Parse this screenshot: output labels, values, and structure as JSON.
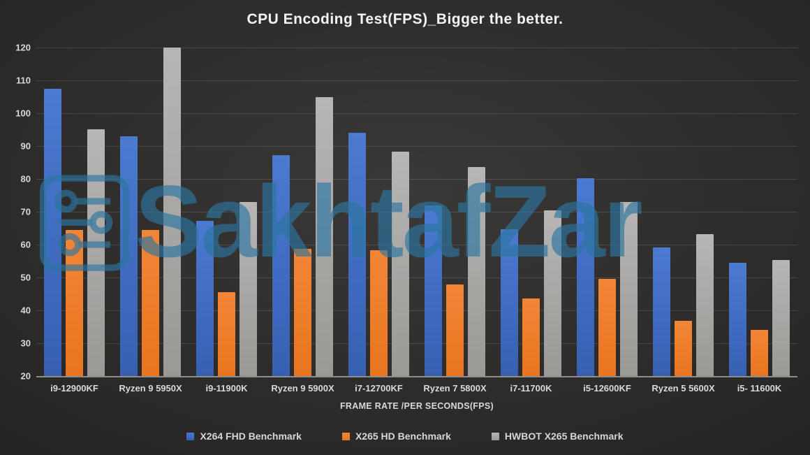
{
  "page": {
    "background": "#2e2d2b"
  },
  "chart_data": {
    "type": "bar",
    "title": "CPU Encoding Test(FPS)_Bigger the better.",
    "xlabel": "FRAME RATE /PER SECONDS(FPS)",
    "ylabel": "",
    "ylim": [
      20,
      120
    ],
    "yticks": [
      120,
      110,
      100,
      90,
      80,
      70,
      60,
      50,
      40,
      30,
      20
    ],
    "grid": true,
    "legend_position": "bottom",
    "categories": [
      "i9-12900KF",
      "Ryzen 9 5950X",
      "i9-11900K",
      "Ryzen 9 5900X",
      "i7-12700KF",
      "Ryzen 7 5800X",
      "i7-11700K",
      "i5-12600KF",
      "Ryzen 5 5600X",
      "i5- 11600K"
    ],
    "series": [
      {
        "name": "X264 FHD Benchmark",
        "color": "#3760b2",
        "color_light": "#4b7ad0",
        "values": [
          107.4,
          93.0,
          67.3,
          87.3,
          94.0,
          72.0,
          64.6,
          80.3,
          59.2,
          54.4
        ]
      },
      {
        "name": "X265 HD Benchmark",
        "color": "#e8751f",
        "color_light": "#f28637",
        "values": [
          64.5,
          64.5,
          45.5,
          58.8,
          58.3,
          47.8,
          43.6,
          49.5,
          36.8,
          34.0
        ]
      },
      {
        "name": "HWBOT X265 Benchmark",
        "color": "#9b9996",
        "color_light": "#b7b6b4",
        "values": [
          95.2,
          120.0,
          73.0,
          105.0,
          88.4,
          83.6,
          70.5,
          73.0,
          63.2,
          55.3
        ]
      }
    ]
  },
  "watermark": {
    "text": "SakhtafZar",
    "color": "#2c76a0"
  }
}
